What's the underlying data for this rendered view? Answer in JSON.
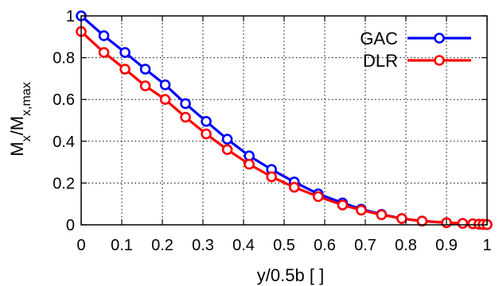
{
  "chart_data": {
    "type": "line",
    "title": "",
    "xlabel": "y/0.5b [ ]",
    "ylabel_main": "M",
    "ylabel_sub1": "x",
    "ylabel_sep": "/M",
    "ylabel_sub2": "x,max",
    "xlim": [
      0,
      1
    ],
    "ylim": [
      0,
      1
    ],
    "xticks": [
      0,
      0.1,
      0.2,
      0.3,
      0.4,
      0.5,
      0.6,
      0.7,
      0.8,
      0.9,
      1
    ],
    "xtick_labels": [
      "0",
      "0.1",
      "0.2",
      "0.3",
      "0.4",
      "0.5",
      "0.6",
      "0.7",
      "0.8",
      "0.9",
      "1"
    ],
    "yticks": [
      0,
      0.2,
      0.4,
      0.6,
      0.8,
      1
    ],
    "ytick_labels": [
      "0",
      "0.2",
      "0.4",
      "0.6",
      "0.8",
      "1"
    ],
    "grid": true,
    "legend_position": "top-right",
    "series": [
      {
        "name": "GAC",
        "color": "#0000ff",
        "x": [
          0.0,
          0.056,
          0.108,
          0.158,
          0.207,
          0.257,
          0.308,
          0.36,
          0.414,
          0.469,
          0.525,
          0.584,
          0.644,
          0.69,
          0.74,
          0.79,
          0.84,
          0.9,
          0.94,
          0.965,
          0.98,
          0.99,
          1.0
        ],
        "y": [
          1.0,
          0.905,
          0.825,
          0.745,
          0.67,
          0.58,
          0.495,
          0.41,
          0.33,
          0.265,
          0.205,
          0.148,
          0.105,
          0.075,
          0.05,
          0.03,
          0.018,
          0.01,
          0.007,
          0.005,
          0.003,
          0.002,
          0.001
        ]
      },
      {
        "name": "DLR",
        "color": "#ff0000",
        "x": [
          0.0,
          0.056,
          0.108,
          0.158,
          0.207,
          0.257,
          0.308,
          0.36,
          0.414,
          0.469,
          0.525,
          0.584,
          0.644,
          0.69,
          0.74,
          0.79,
          0.84,
          0.9,
          0.94,
          0.965,
          0.98,
          0.99,
          1.0
        ],
        "y": [
          0.925,
          0.825,
          0.745,
          0.665,
          0.6,
          0.515,
          0.435,
          0.36,
          0.29,
          0.23,
          0.18,
          0.135,
          0.095,
          0.07,
          0.048,
          0.03,
          0.018,
          0.01,
          0.007,
          0.005,
          0.003,
          0.002,
          0.001
        ]
      }
    ]
  }
}
